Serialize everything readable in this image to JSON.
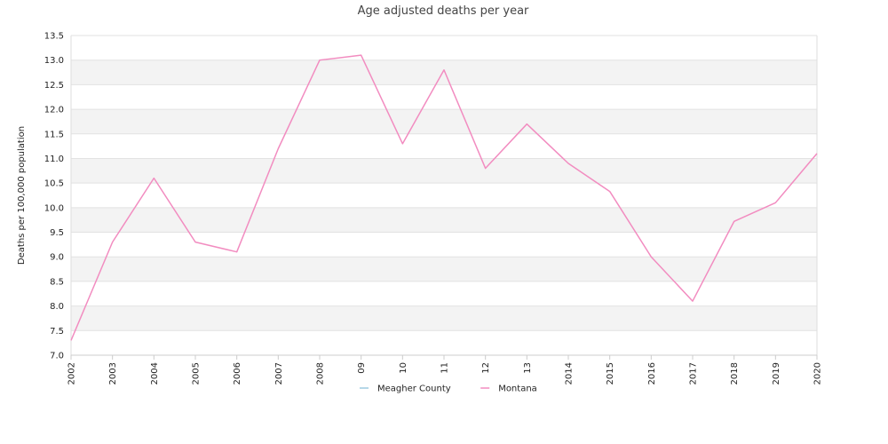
{
  "chart_data": {
    "type": "line",
    "title": "Age adjusted deaths per year",
    "xlabel": "",
    "ylabel": "Deaths per 100,000 population",
    "x": [
      "2002",
      "2003",
      "2004",
      "2005",
      "2006",
      "2007",
      "2008",
      "09",
      "10",
      "11",
      "12",
      "13",
      "2014",
      "2015",
      "2016",
      "2017",
      "2018",
      "2019",
      "2020"
    ],
    "ylim": [
      7.0,
      13.5
    ],
    "yticks": [
      "7.0",
      "7.5",
      "8.0",
      "8.5",
      "9.0",
      "9.5",
      "10.0",
      "10.5",
      "11.0",
      "11.5",
      "12.0",
      "12.5",
      "13.0",
      "13.5"
    ],
    "grid": "horizontal alternating bands",
    "legend_position": "bottom-center",
    "series": [
      {
        "name": "Meagher County",
        "color": "#9ecae1",
        "values": [
          null,
          null,
          null,
          null,
          null,
          null,
          null,
          null,
          null,
          null,
          null,
          null,
          null,
          null,
          null,
          null,
          null,
          null,
          null
        ]
      },
      {
        "name": "Montana",
        "color": "#f28cc0",
        "values": [
          7.3,
          9.3,
          10.6,
          9.3,
          9.1,
          11.2,
          13.0,
          13.1,
          11.3,
          12.8,
          10.8,
          11.7,
          10.9,
          10.33,
          9.0,
          8.1,
          9.72,
          10.1,
          11.1
        ]
      }
    ]
  }
}
